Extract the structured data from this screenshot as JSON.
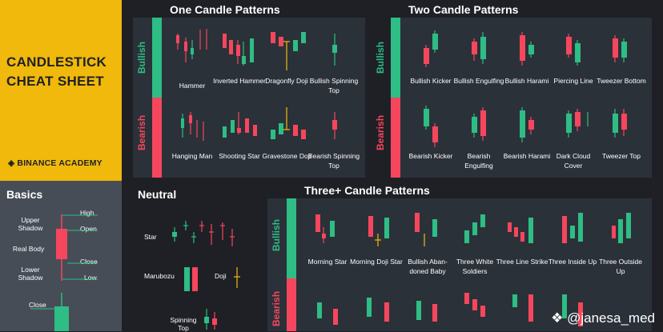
{
  "title": [
    "CANDLESTICK",
    "CHEAT SHEET"
  ],
  "brand": "BINANCE ACADEMY",
  "basics": {
    "heading": "Basics",
    "labels": [
      "Upper Shadow",
      "Real Body",
      "Lower Shadow",
      "High",
      "Open",
      "Close",
      "Low",
      "Close"
    ]
  },
  "sections": {
    "one": "One Candle Patterns",
    "two": "Two Candle Patterns",
    "neutral": "Neutral",
    "three": "Three+ Candle Patterns"
  },
  "side_labels": {
    "bullish": "Bullish",
    "bearish": "Bearish"
  },
  "one_candle": {
    "bullish": [
      "Hammer",
      "Inverted Hammer",
      "Dragonfly Doji",
      "Bullish Spinning Top"
    ],
    "bearish": [
      "Hanging Man",
      "Shooting Star",
      "Gravestone Doji",
      "Bearish Spinning Top"
    ]
  },
  "two_candle": {
    "bullish": [
      "Bullish Kicker",
      "Bullish Engulfing",
      "Bullish Harami",
      "Piercing Line",
      "Tweezer Bottom"
    ],
    "bearish": [
      "Bearish Kicker",
      "Bearish Engulfing",
      "Bearish Harami",
      "Dark Cloud Cover",
      "Tweezer Top"
    ]
  },
  "neutral": [
    "Star",
    "Marubozu",
    "Doji",
    "Spinning Top"
  ],
  "three_candle": {
    "bullish": [
      "Morning Star",
      "Morning Doji Star",
      "Bullish Aban- doned Baby",
      "Three White Soldiers",
      "Three Line Strike",
      "Three Inside Up",
      "Three Outside Up"
    ]
  },
  "watermark": "@janesa_med",
  "colors": {
    "bull": "#2ebd85",
    "bear": "#f6465d",
    "gold": "#f0b90b",
    "bg": "#1e2026",
    "panel": "#2b3139"
  }
}
